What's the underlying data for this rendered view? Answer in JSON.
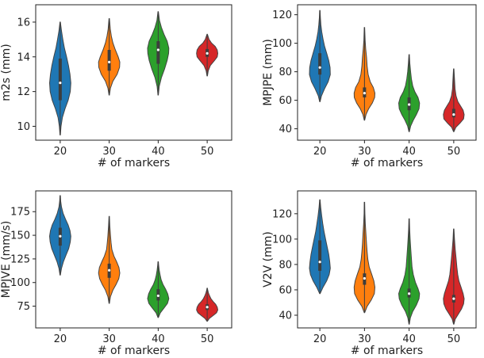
{
  "chart_data": [
    {
      "type": "violin",
      "xlabel": "# of markers",
      "ylabel": "m2s (mm)",
      "categories": [
        "20",
        "30",
        "40",
        "50"
      ],
      "ylim": [
        9.2,
        17.0
      ],
      "yticks": [
        10,
        12,
        14,
        16
      ],
      "series": [
        {
          "category": "20",
          "color": "#1f77b4",
          "min": 9.5,
          "max": 16.0,
          "q1": 11.5,
          "median": 12.5,
          "q3": 13.9,
          "density": [
            [
              9.5,
              0.02
            ],
            [
              10.0,
              0.08
            ],
            [
              10.5,
              0.2
            ],
            [
              11.0,
              0.45
            ],
            [
              11.5,
              0.75
            ],
            [
              12.0,
              0.95
            ],
            [
              12.5,
              1.0
            ],
            [
              13.0,
              0.92
            ],
            [
              13.5,
              0.78
            ],
            [
              14.0,
              0.6
            ],
            [
              14.5,
              0.4
            ],
            [
              15.0,
              0.25
            ],
            [
              15.5,
              0.12
            ],
            [
              16.0,
              0.02
            ]
          ]
        },
        {
          "category": "30",
          "color": "#ff7f0e",
          "min": 11.8,
          "max": 16.2,
          "q1": 13.2,
          "median": 13.7,
          "q3": 14.4,
          "density": [
            [
              11.8,
              0.02
            ],
            [
              12.2,
              0.12
            ],
            [
              12.6,
              0.35
            ],
            [
              13.0,
              0.75
            ],
            [
              13.4,
              0.98
            ],
            [
              13.7,
              1.0
            ],
            [
              14.0,
              0.85
            ],
            [
              14.4,
              0.58
            ],
            [
              14.8,
              0.35
            ],
            [
              15.2,
              0.2
            ],
            [
              15.6,
              0.1
            ],
            [
              16.0,
              0.05
            ],
            [
              16.2,
              0.02
            ]
          ]
        },
        {
          "category": "40",
          "color": "#2ca02c",
          "min": 11.8,
          "max": 16.6,
          "q1": 13.6,
          "median": 14.4,
          "q3": 14.9,
          "density": [
            [
              11.8,
              0.02
            ],
            [
              12.3,
              0.1
            ],
            [
              12.8,
              0.3
            ],
            [
              13.3,
              0.6
            ],
            [
              13.8,
              0.85
            ],
            [
              14.2,
              0.98
            ],
            [
              14.5,
              1.0
            ],
            [
              14.9,
              0.85
            ],
            [
              15.3,
              0.55
            ],
            [
              15.7,
              0.3
            ],
            [
              16.1,
              0.12
            ],
            [
              16.6,
              0.02
            ]
          ]
        },
        {
          "category": "50",
          "color": "#d62728",
          "min": 12.9,
          "max": 15.3,
          "q1": 14.0,
          "median": 14.2,
          "q3": 14.45,
          "density": [
            [
              12.9,
              0.02
            ],
            [
              13.2,
              0.1
            ],
            [
              13.5,
              0.3
            ],
            [
              13.8,
              0.7
            ],
            [
              14.0,
              0.95
            ],
            [
              14.2,
              1.0
            ],
            [
              14.4,
              0.95
            ],
            [
              14.6,
              0.75
            ],
            [
              14.8,
              0.4
            ],
            [
              15.0,
              0.18
            ],
            [
              15.3,
              0.02
            ]
          ]
        }
      ]
    },
    {
      "type": "violin",
      "xlabel": "# of markers",
      "ylabel": "MPJPE (mm)",
      "categories": [
        "20",
        "30",
        "40",
        "50"
      ],
      "ylim": [
        32,
        127
      ],
      "yticks": [
        40,
        60,
        80,
        100,
        120
      ],
      "series": [
        {
          "category": "20",
          "color": "#1f77b4",
          "min": 59,
          "max": 123,
          "q1": 78,
          "median": 83,
          "q3": 93,
          "density": [
            [
              59,
              0.02
            ],
            [
              63,
              0.15
            ],
            [
              68,
              0.45
            ],
            [
              73,
              0.8
            ],
            [
              78,
              1.0
            ],
            [
              83,
              0.98
            ],
            [
              88,
              0.85
            ],
            [
              93,
              0.65
            ],
            [
              98,
              0.45
            ],
            [
              103,
              0.3
            ],
            [
              108,
              0.18
            ],
            [
              113,
              0.1
            ],
            [
              118,
              0.05
            ],
            [
              123,
              0.02
            ]
          ]
        },
        {
          "category": "30",
          "color": "#ff7f0e",
          "min": 46,
          "max": 111,
          "q1": 62,
          "median": 65,
          "q3": 69,
          "density": [
            [
              46,
              0.02
            ],
            [
              50,
              0.15
            ],
            [
              54,
              0.4
            ],
            [
              58,
              0.75
            ],
            [
              62,
              0.98
            ],
            [
              65,
              1.0
            ],
            [
              69,
              0.85
            ],
            [
              73,
              0.55
            ],
            [
              78,
              0.35
            ],
            [
              84,
              0.25
            ],
            [
              90,
              0.2
            ],
            [
              96,
              0.12
            ],
            [
              102,
              0.06
            ],
            [
              111,
              0.02
            ]
          ]
        },
        {
          "category": "40",
          "color": "#2ca02c",
          "min": 38,
          "max": 92,
          "q1": 53,
          "median": 57,
          "q3": 62,
          "density": [
            [
              38,
              0.02
            ],
            [
              42,
              0.15
            ],
            [
              46,
              0.4
            ],
            [
              50,
              0.7
            ],
            [
              54,
              0.95
            ],
            [
              58,
              1.0
            ],
            [
              62,
              0.85
            ],
            [
              66,
              0.55
            ],
            [
              70,
              0.35
            ],
            [
              75,
              0.22
            ],
            [
              80,
              0.14
            ],
            [
              86,
              0.07
            ],
            [
              92,
              0.02
            ]
          ]
        },
        {
          "category": "50",
          "color": "#d62728",
          "min": 38,
          "max": 82,
          "q1": 48,
          "median": 50,
          "q3": 54,
          "density": [
            [
              38,
              0.02
            ],
            [
              41,
              0.2
            ],
            [
              44,
              0.6
            ],
            [
              47,
              0.95
            ],
            [
              50,
              1.0
            ],
            [
              53,
              0.9
            ],
            [
              56,
              0.65
            ],
            [
              59,
              0.4
            ],
            [
              63,
              0.22
            ],
            [
              68,
              0.12
            ],
            [
              74,
              0.08
            ],
            [
              78,
              0.05
            ],
            [
              82,
              0.02
            ]
          ]
        }
      ]
    },
    {
      "type": "violin",
      "xlabel": "# of markers",
      "ylabel": "MPJVE (mm/s)",
      "categories": [
        "20",
        "30",
        "40",
        "50"
      ],
      "ylim": [
        52,
        197
      ],
      "yticks": [
        75,
        100,
        125,
        150,
        175
      ],
      "series": [
        {
          "category": "20",
          "color": "#1f77b4",
          "min": 108,
          "max": 192,
          "q1": 139,
          "median": 149,
          "q3": 158,
          "density": [
            [
              108,
              0.02
            ],
            [
              115,
              0.12
            ],
            [
              122,
              0.3
            ],
            [
              129,
              0.55
            ],
            [
              136,
              0.8
            ],
            [
              143,
              0.95
            ],
            [
              149,
              1.0
            ],
            [
              155,
              0.92
            ],
            [
              161,
              0.75
            ],
            [
              167,
              0.5
            ],
            [
              173,
              0.28
            ],
            [
              180,
              0.12
            ],
            [
              186,
              0.05
            ],
            [
              192,
              0.02
            ]
          ]
        },
        {
          "category": "30",
          "color": "#ff7f0e",
          "min": 78,
          "max": 170,
          "q1": 105,
          "median": 113,
          "q3": 120,
          "density": [
            [
              78,
              0.02
            ],
            [
              85,
              0.12
            ],
            [
              92,
              0.35
            ],
            [
              98,
              0.65
            ],
            [
              104,
              0.9
            ],
            [
              110,
              1.0
            ],
            [
              116,
              0.92
            ],
            [
              122,
              0.7
            ],
            [
              128,
              0.45
            ],
            [
              135,
              0.25
            ],
            [
              142,
              0.18
            ],
            [
              150,
              0.12
            ],
            [
              160,
              0.06
            ],
            [
              170,
              0.02
            ]
          ]
        },
        {
          "category": "40",
          "color": "#2ca02c",
          "min": 63,
          "max": 122,
          "q1": 81,
          "median": 86,
          "q3": 93,
          "density": [
            [
              63,
              0.02
            ],
            [
              68,
              0.2
            ],
            [
              73,
              0.55
            ],
            [
              78,
              0.88
            ],
            [
              83,
              1.0
            ],
            [
              88,
              0.9
            ],
            [
              93,
              0.7
            ],
            [
              98,
              0.45
            ],
            [
              103,
              0.28
            ],
            [
              108,
              0.18
            ],
            [
              113,
              0.1
            ],
            [
              118,
              0.05
            ],
            [
              122,
              0.02
            ]
          ]
        },
        {
          "category": "50",
          "color": "#d62728",
          "min": 59,
          "max": 94,
          "q1": 71,
          "median": 74,
          "q3": 77,
          "density": [
            [
              59,
              0.02
            ],
            [
              62,
              0.2
            ],
            [
              65,
              0.55
            ],
            [
              68,
              0.88
            ],
            [
              71,
              1.0
            ],
            [
              74,
              0.95
            ],
            [
              77,
              0.8
            ],
            [
              80,
              0.55
            ],
            [
              83,
              0.35
            ],
            [
              86,
              0.22
            ],
            [
              89,
              0.12
            ],
            [
              92,
              0.05
            ],
            [
              94,
              0.02
            ]
          ]
        }
      ]
    },
    {
      "type": "violin",
      "xlabel": "# of markers",
      "ylabel": "V2V (mm)",
      "categories": [
        "20",
        "30",
        "40",
        "50"
      ],
      "ylim": [
        30,
        138
      ],
      "yticks": [
        40,
        60,
        80,
        100,
        120
      ],
      "series": [
        {
          "category": "20",
          "color": "#1f77b4",
          "min": 57,
          "max": 131,
          "q1": 75,
          "median": 82,
          "q3": 99,
          "density": [
            [
              57,
              0.02
            ],
            [
              62,
              0.3
            ],
            [
              67,
              0.65
            ],
            [
              72,
              0.9
            ],
            [
              77,
              1.0
            ],
            [
              82,
              0.95
            ],
            [
              88,
              0.85
            ],
            [
              94,
              0.7
            ],
            [
              100,
              0.55
            ],
            [
              106,
              0.4
            ],
            [
              112,
              0.28
            ],
            [
              118,
              0.18
            ],
            [
              125,
              0.08
            ],
            [
              131,
              0.02
            ]
          ]
        },
        {
          "category": "30",
          "color": "#ff7f0e",
          "min": 42,
          "max": 129,
          "q1": 64,
          "median": 69,
          "q3": 73,
          "density": [
            [
              42,
              0.02
            ],
            [
              47,
              0.25
            ],
            [
              52,
              0.65
            ],
            [
              57,
              0.95
            ],
            [
              62,
              1.0
            ],
            [
              67,
              0.9
            ],
            [
              72,
              0.7
            ],
            [
              78,
              0.45
            ],
            [
              84,
              0.32
            ],
            [
              90,
              0.25
            ],
            [
              96,
              0.2
            ],
            [
              104,
              0.14
            ],
            [
              112,
              0.08
            ],
            [
              120,
              0.04
            ],
            [
              129,
              0.02
            ]
          ]
        },
        {
          "category": "40",
          "color": "#2ca02c",
          "min": 33,
          "max": 116,
          "q1": 54,
          "median": 57,
          "q3": 61,
          "density": [
            [
              33,
              0.02
            ],
            [
              38,
              0.12
            ],
            [
              43,
              0.35
            ],
            [
              48,
              0.7
            ],
            [
              53,
              0.95
            ],
            [
              57,
              1.0
            ],
            [
              61,
              0.85
            ],
            [
              66,
              0.6
            ],
            [
              72,
              0.4
            ],
            [
              78,
              0.28
            ],
            [
              85,
              0.22
            ],
            [
              92,
              0.16
            ],
            [
              100,
              0.1
            ],
            [
              108,
              0.05
            ],
            [
              116,
              0.02
            ]
          ]
        },
        {
          "category": "50",
          "color": "#d62728",
          "min": 33,
          "max": 108,
          "q1": 50,
          "median": 53,
          "q3": 56,
          "density": [
            [
              33,
              0.02
            ],
            [
              37,
              0.15
            ],
            [
              41,
              0.45
            ],
            [
              45,
              0.75
            ],
            [
              49,
              0.95
            ],
            [
              53,
              1.0
            ],
            [
              57,
              0.9
            ],
            [
              62,
              0.7
            ],
            [
              67,
              0.5
            ],
            [
              72,
              0.38
            ],
            [
              78,
              0.3
            ],
            [
              85,
              0.22
            ],
            [
              92,
              0.14
            ],
            [
              100,
              0.07
            ],
            [
              108,
              0.02
            ]
          ]
        }
      ]
    }
  ]
}
